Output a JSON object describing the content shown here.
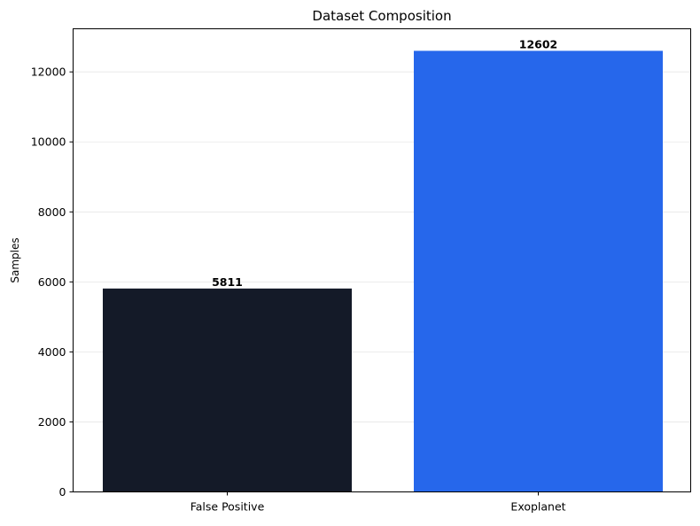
{
  "chart_data": {
    "type": "bar",
    "title": "Dataset Composition",
    "xlabel": "",
    "ylabel": "Samples",
    "categories": [
      "False Positive",
      "Exoplanet"
    ],
    "values": [
      5811,
      12602
    ],
    "data_labels": [
      "5811",
      "12602"
    ],
    "colors": [
      "#141a28",
      "#2667eb"
    ],
    "ylim": [
      0,
      13232
    ],
    "yticks": [
      0,
      2000,
      4000,
      6000,
      8000,
      10000,
      12000
    ],
    "ytick_labels": [
      "0",
      "2000",
      "4000",
      "6000",
      "8000",
      "10000",
      "12000"
    ],
    "grid": "y",
    "legend": "none"
  }
}
